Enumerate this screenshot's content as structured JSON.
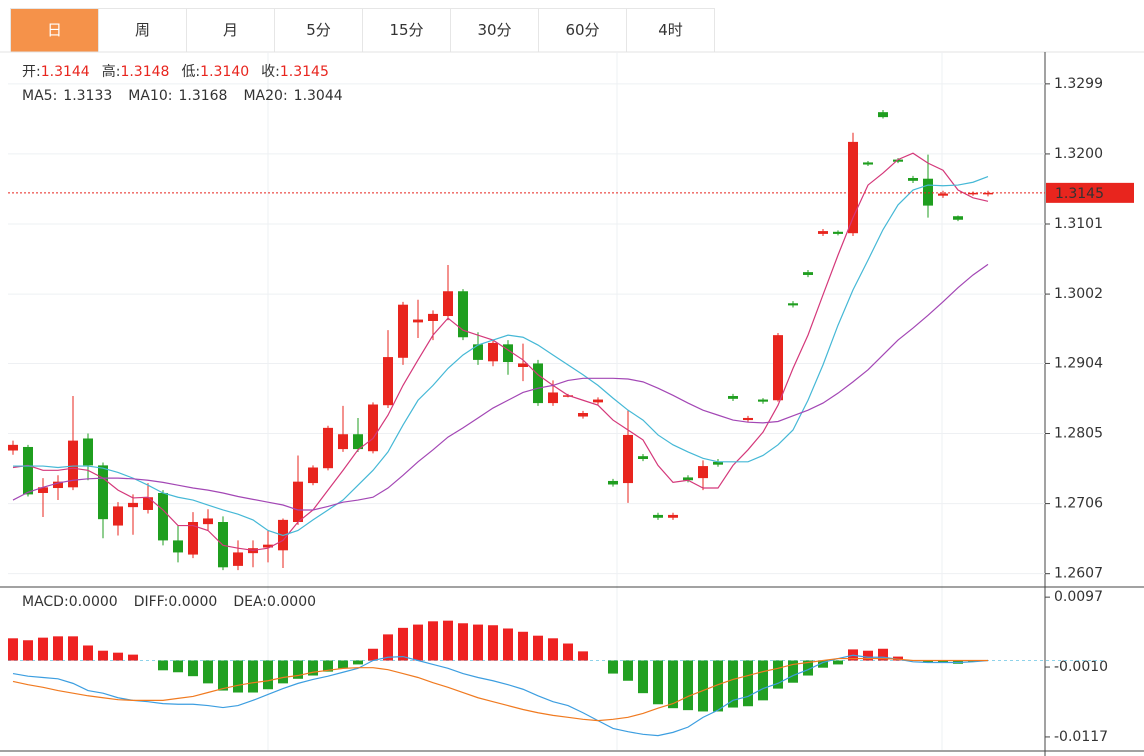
{
  "tabs": [
    "日",
    "周",
    "月",
    "5分",
    "15分",
    "30分",
    "60分",
    "4时"
  ],
  "active_tab": 0,
  "chart_data": [
    {
      "type": "candlestick",
      "readout": [
        {
          "label": "开:",
          "value": "1.3144"
        },
        {
          "label": "高:",
          "value": "1.3148"
        },
        {
          "label": "低:",
          "value": "1.3140"
        },
        {
          "label": "收:",
          "value": "1.3145"
        }
      ],
      "up_color": "#e8251e",
      "down_color": "#1f9e1f",
      "open": [
        1.2781,
        1.2786,
        1.2721,
        1.2728,
        1.2729,
        1.2798,
        1.276,
        1.2675,
        1.2701,
        1.2697,
        1.2721,
        1.2654,
        1.2634,
        1.2677,
        1.268,
        1.2618,
        1.2636,
        1.2644,
        1.264,
        1.268,
        1.2735,
        1.2756,
        1.2783,
        1.2804,
        1.278,
        1.2845,
        1.2912,
        1.2962,
        1.2964,
        1.2971,
        1.3006,
        1.2931,
        1.2907,
        1.2931,
        1.2899,
        1.2904,
        1.2848,
        1.2857,
        1.2829,
        1.2849,
        1.2738,
        1.2735,
        1.2773,
        1.269,
        1.2686,
        1.2743,
        1.2742,
        1.2765,
        1.2858,
        1.2824,
        1.2853,
        1.2852,
        1.2989,
        1.3033,
        1.3087,
        1.309,
        1.3088,
        1.3188,
        1.3259,
        1.3192,
        1.3166,
        1.3165,
        1.3141,
        1.3112,
        1.3143,
        1.3144
      ],
      "high": [
        1.2795,
        1.2789,
        1.2742,
        1.2746,
        1.2858,
        1.2805,
        1.2764,
        1.2708,
        1.2719,
        1.2735,
        1.2725,
        1.2675,
        1.2694,
        1.2698,
        1.2688,
        1.2654,
        1.2654,
        1.2668,
        1.2685,
        1.2774,
        1.276,
        1.2816,
        1.2844,
        1.2827,
        1.2849,
        1.2951,
        1.2991,
        1.2994,
        1.2979,
        1.3043,
        1.3009,
        1.2948,
        1.2938,
        1.2937,
        1.2932,
        1.2909,
        1.288,
        1.2861,
        1.2837,
        1.2856,
        1.2741,
        1.2838,
        1.2776,
        1.2693,
        1.2693,
        1.2746,
        1.2767,
        1.2769,
        1.2861,
        1.283,
        1.2855,
        1.2947,
        1.2992,
        1.3036,
        1.3094,
        1.3092,
        1.323,
        1.319,
        1.3262,
        1.3194,
        1.3169,
        1.3199,
        1.3148,
        1.3113,
        1.3147,
        1.3148
      ],
      "low": [
        1.2775,
        1.2716,
        1.2687,
        1.2711,
        1.2725,
        1.2739,
        1.2657,
        1.2661,
        1.2662,
        1.2692,
        1.2647,
        1.2623,
        1.2629,
        1.2668,
        1.2612,
        1.2612,
        1.2616,
        1.2623,
        1.2615,
        1.2676,
        1.2732,
        1.2753,
        1.2779,
        1.2779,
        1.2777,
        1.2841,
        1.2902,
        1.294,
        1.2937,
        1.2965,
        1.2937,
        1.2902,
        1.29,
        1.2888,
        1.2879,
        1.2844,
        1.2844,
        1.2856,
        1.2826,
        1.2846,
        1.273,
        1.2707,
        1.2766,
        1.2683,
        1.2683,
        1.2736,
        1.2725,
        1.2758,
        1.2851,
        1.2821,
        1.2847,
        1.285,
        1.2983,
        1.3026,
        1.3084,
        1.3085,
        1.3084,
        1.3183,
        1.325,
        1.3187,
        1.3159,
        1.311,
        1.3138,
        1.3105,
        1.3141,
        1.314
      ],
      "close": [
        1.2789,
        1.2719,
        1.2729,
        1.2737,
        1.2795,
        1.276,
        1.2684,
        1.2702,
        1.2707,
        1.2715,
        1.2654,
        1.2637,
        1.268,
        1.2685,
        1.2616,
        1.2637,
        1.2643,
        1.2648,
        1.2683,
        1.2737,
        1.2757,
        1.2813,
        1.2804,
        1.2783,
        1.2846,
        1.2913,
        1.2987,
        1.2966,
        1.2974,
        1.3006,
        1.2941,
        1.2909,
        1.2933,
        1.2906,
        1.2904,
        1.2848,
        1.2863,
        1.2859,
        1.2834,
        1.2853,
        1.2733,
        1.2803,
        1.2769,
        1.2686,
        1.269,
        1.2739,
        1.2759,
        1.2761,
        1.2854,
        1.2827,
        1.285,
        1.2944,
        1.2986,
        1.3029,
        1.3091,
        1.3087,
        1.3217,
        1.3185,
        1.3252,
        1.3189,
        1.3162,
        1.3127,
        1.3144,
        1.3107,
        1.3145,
        1.3145
      ],
      "series": [
        {
          "name": "MA5:",
          "readout": "1.3133",
          "color": "#d4387a",
          "values": [
            1.2757,
            1.276,
            1.2753,
            1.2753,
            1.2756,
            1.2753,
            1.2742,
            1.2725,
            1.2714,
            1.2715,
            1.2697,
            1.2675,
            1.2675,
            1.2668,
            1.2647,
            1.2643,
            1.264,
            1.2643,
            1.2654,
            1.268,
            1.2697,
            1.2725,
            1.2753,
            1.2782,
            1.2798,
            1.2831,
            1.2873,
            1.2909,
            1.2944,
            1.2968,
            1.2951,
            1.2944,
            1.2937,
            1.2923,
            1.2909,
            1.2888,
            1.2873,
            1.2859,
            1.2852,
            1.2845,
            1.2824,
            1.281,
            1.2796,
            1.276,
            1.2736,
            1.2739,
            1.2728,
            1.2728,
            1.276,
            1.2782,
            1.2807,
            1.2845,
            1.2897,
            1.2944,
            1.3001,
            1.3057,
            1.311,
            1.3156,
            1.3173,
            1.3192,
            1.3201,
            1.3187,
            1.3177,
            1.3149,
            1.3138,
            1.3133
          ]
        },
        {
          "name": "MA10:",
          "readout": "1.3168",
          "color": "#45b8d6",
          "values": [
            1.2759,
            1.2759,
            1.2759,
            1.2757,
            1.2759,
            1.2759,
            1.2756,
            1.275,
            1.2742,
            1.2732,
            1.2721,
            1.2715,
            1.2711,
            1.2704,
            1.2697,
            1.2691,
            1.2683,
            1.2668,
            1.2661,
            1.2668,
            1.2683,
            1.2697,
            1.2711,
            1.2732,
            1.2753,
            1.2779,
            1.2817,
            1.2852,
            1.2873,
            1.2897,
            1.2916,
            1.293,
            1.2937,
            1.2944,
            1.2941,
            1.293,
            1.2916,
            1.2902,
            1.2888,
            1.2873,
            1.2855,
            1.2838,
            1.2824,
            1.2803,
            1.2789,
            1.2779,
            1.277,
            1.2765,
            1.2765,
            1.2765,
            1.2774,
            1.2789,
            1.281,
            1.2852,
            1.2902,
            1.2958,
            1.3008,
            1.305,
            1.3093,
            1.3128,
            1.3149,
            1.3156,
            1.3155,
            1.3156,
            1.316,
            1.3168
          ]
        },
        {
          "name": "MA20:",
          "readout": "1.3044",
          "color": "#a347b5",
          "values": [
            1.2711,
            1.2722,
            1.2729,
            1.2735,
            1.2739,
            1.2741,
            1.2742,
            1.2742,
            1.2741,
            1.2739,
            1.2736,
            1.2732,
            1.2728,
            1.2725,
            1.2721,
            1.2716,
            1.2712,
            1.2708,
            1.2704,
            1.2697,
            1.2697,
            1.2702,
            1.2708,
            1.2711,
            1.2715,
            1.2728,
            1.2746,
            1.2765,
            1.2782,
            1.28,
            1.2813,
            1.2827,
            1.2841,
            1.2852,
            1.2863,
            1.2869,
            1.2873,
            1.288,
            1.2883,
            1.2883,
            1.2883,
            1.2882,
            1.2878,
            1.2869,
            1.2859,
            1.2848,
            1.2838,
            1.2831,
            1.2824,
            1.2821,
            1.282,
            1.2822,
            1.283,
            1.2838,
            1.2848,
            1.2862,
            1.2878,
            1.2895,
            1.2916,
            1.2937,
            1.2954,
            1.2972,
            1.2991,
            1.3011,
            1.3029,
            1.3044
          ]
        }
      ],
      "ylim": [
        1.2591,
        1.3344
      ],
      "yticks": [
        1.3299,
        {
          "value": 1.32,
          "label": "1.3200"
        },
        1.3101,
        1.3002,
        1.2904,
        1.2805,
        1.2706,
        1.2607
      ],
      "last_price": 1.3145,
      "last_price_color": "#e8251e",
      "grid": true
    },
    {
      "type": "macd",
      "histogram": {
        "name": "MACD:",
        "readout": "0.0000",
        "color": "#e8251e",
        "up_color": "#ee2222",
        "down_color": "#22a022",
        "values": [
          0.0034,
          0.0031,
          0.0035,
          0.0037,
          0.0037,
          0.0023,
          0.0015,
          0.0012,
          0.0009,
          0,
          -0.0015,
          -0.0018,
          -0.0024,
          -0.0035,
          -0.0046,
          -0.0049,
          -0.0049,
          -0.0044,
          -0.0035,
          -0.0028,
          -0.0023,
          -0.0017,
          -0.0012,
          -0.0006,
          0.0018,
          0.004,
          0.005,
          0.0055,
          0.006,
          0.0061,
          0.0057,
          0.0055,
          0.0054,
          0.0049,
          0.0044,
          0.0038,
          0.0034,
          0.0026,
          0.0014,
          0,
          -0.002,
          -0.0031,
          -0.005,
          -0.0067,
          -0.0073,
          -0.0076,
          -0.0078,
          -0.0078,
          -0.0072,
          -0.007,
          -0.0061,
          -0.0043,
          -0.0034,
          -0.0023,
          -0.0011,
          -0.0006,
          0.0017,
          0.0015,
          0.0018,
          0.0006,
          0,
          -0.0003,
          -0.0003,
          -0.0005,
          -0.0002,
          0
        ]
      },
      "series": [
        {
          "name": "DIFF:",
          "readout": "0.0000",
          "color": "#3c9ee0",
          "values": [
            -0.002,
            -0.0024,
            -0.0026,
            -0.0028,
            -0.0035,
            -0.0046,
            -0.005,
            -0.0057,
            -0.0061,
            -0.0063,
            -0.0066,
            -0.0067,
            -0.0067,
            -0.0069,
            -0.0072,
            -0.0069,
            -0.0061,
            -0.0052,
            -0.0043,
            -0.0035,
            -0.0029,
            -0.0024,
            -0.0018,
            -0.0012,
            0,
            0.0005,
            0.0006,
            0,
            -0.0006,
            -0.0012,
            -0.002,
            -0.0026,
            -0.0031,
            -0.0037,
            -0.0044,
            -0.0054,
            -0.0063,
            -0.0069,
            -0.008,
            -0.0092,
            -0.0104,
            -0.0109,
            -0.0113,
            -0.0115,
            -0.011,
            -0.0102,
            -0.0087,
            -0.0076,
            -0.0061,
            -0.0055,
            -0.0043,
            -0.0035,
            -0.0023,
            -0.0014,
            -0.0003,
            0.0003,
            0.0008,
            0.0005,
            0.0005,
            0.0002,
            -0.0002,
            -0.0003,
            -0.0003,
            -0.0003,
            -0.0002,
            0
          ]
        },
        {
          "name": "DEA:",
          "readout": "0.0000",
          "color": "#f07a20",
          "values": [
            -0.0032,
            -0.0037,
            -0.0041,
            -0.0046,
            -0.005,
            -0.0054,
            -0.0057,
            -0.006,
            -0.0061,
            -0.0061,
            -0.0061,
            -0.0058,
            -0.0055,
            -0.0049,
            -0.0043,
            -0.0038,
            -0.0034,
            -0.0031,
            -0.0026,
            -0.0023,
            -0.0018,
            -0.0015,
            -0.0012,
            -0.0011,
            -0.0011,
            -0.0014,
            -0.002,
            -0.0026,
            -0.0034,
            -0.0041,
            -0.0049,
            -0.0057,
            -0.0063,
            -0.0069,
            -0.0075,
            -0.008,
            -0.0084,
            -0.0087,
            -0.009,
            -0.0092,
            -0.009,
            -0.0087,
            -0.0081,
            -0.0073,
            -0.0066,
            -0.0055,
            -0.0046,
            -0.0037,
            -0.0029,
            -0.0023,
            -0.0017,
            -0.0012,
            -0.0006,
            -0.0003,
            0,
            0.0003,
            0.0003,
            0.0003,
            0.0003,
            0.0002,
            0,
            0,
            0,
            0,
            0,
            0
          ]
        }
      ],
      "ylim": [
        -0.0137,
        0.0111
      ],
      "yticks": [
        0.0097,
        {
          "value": -0.001,
          "label": "-0.0010"
        },
        -0.0117
      ],
      "grid": false
    }
  ]
}
